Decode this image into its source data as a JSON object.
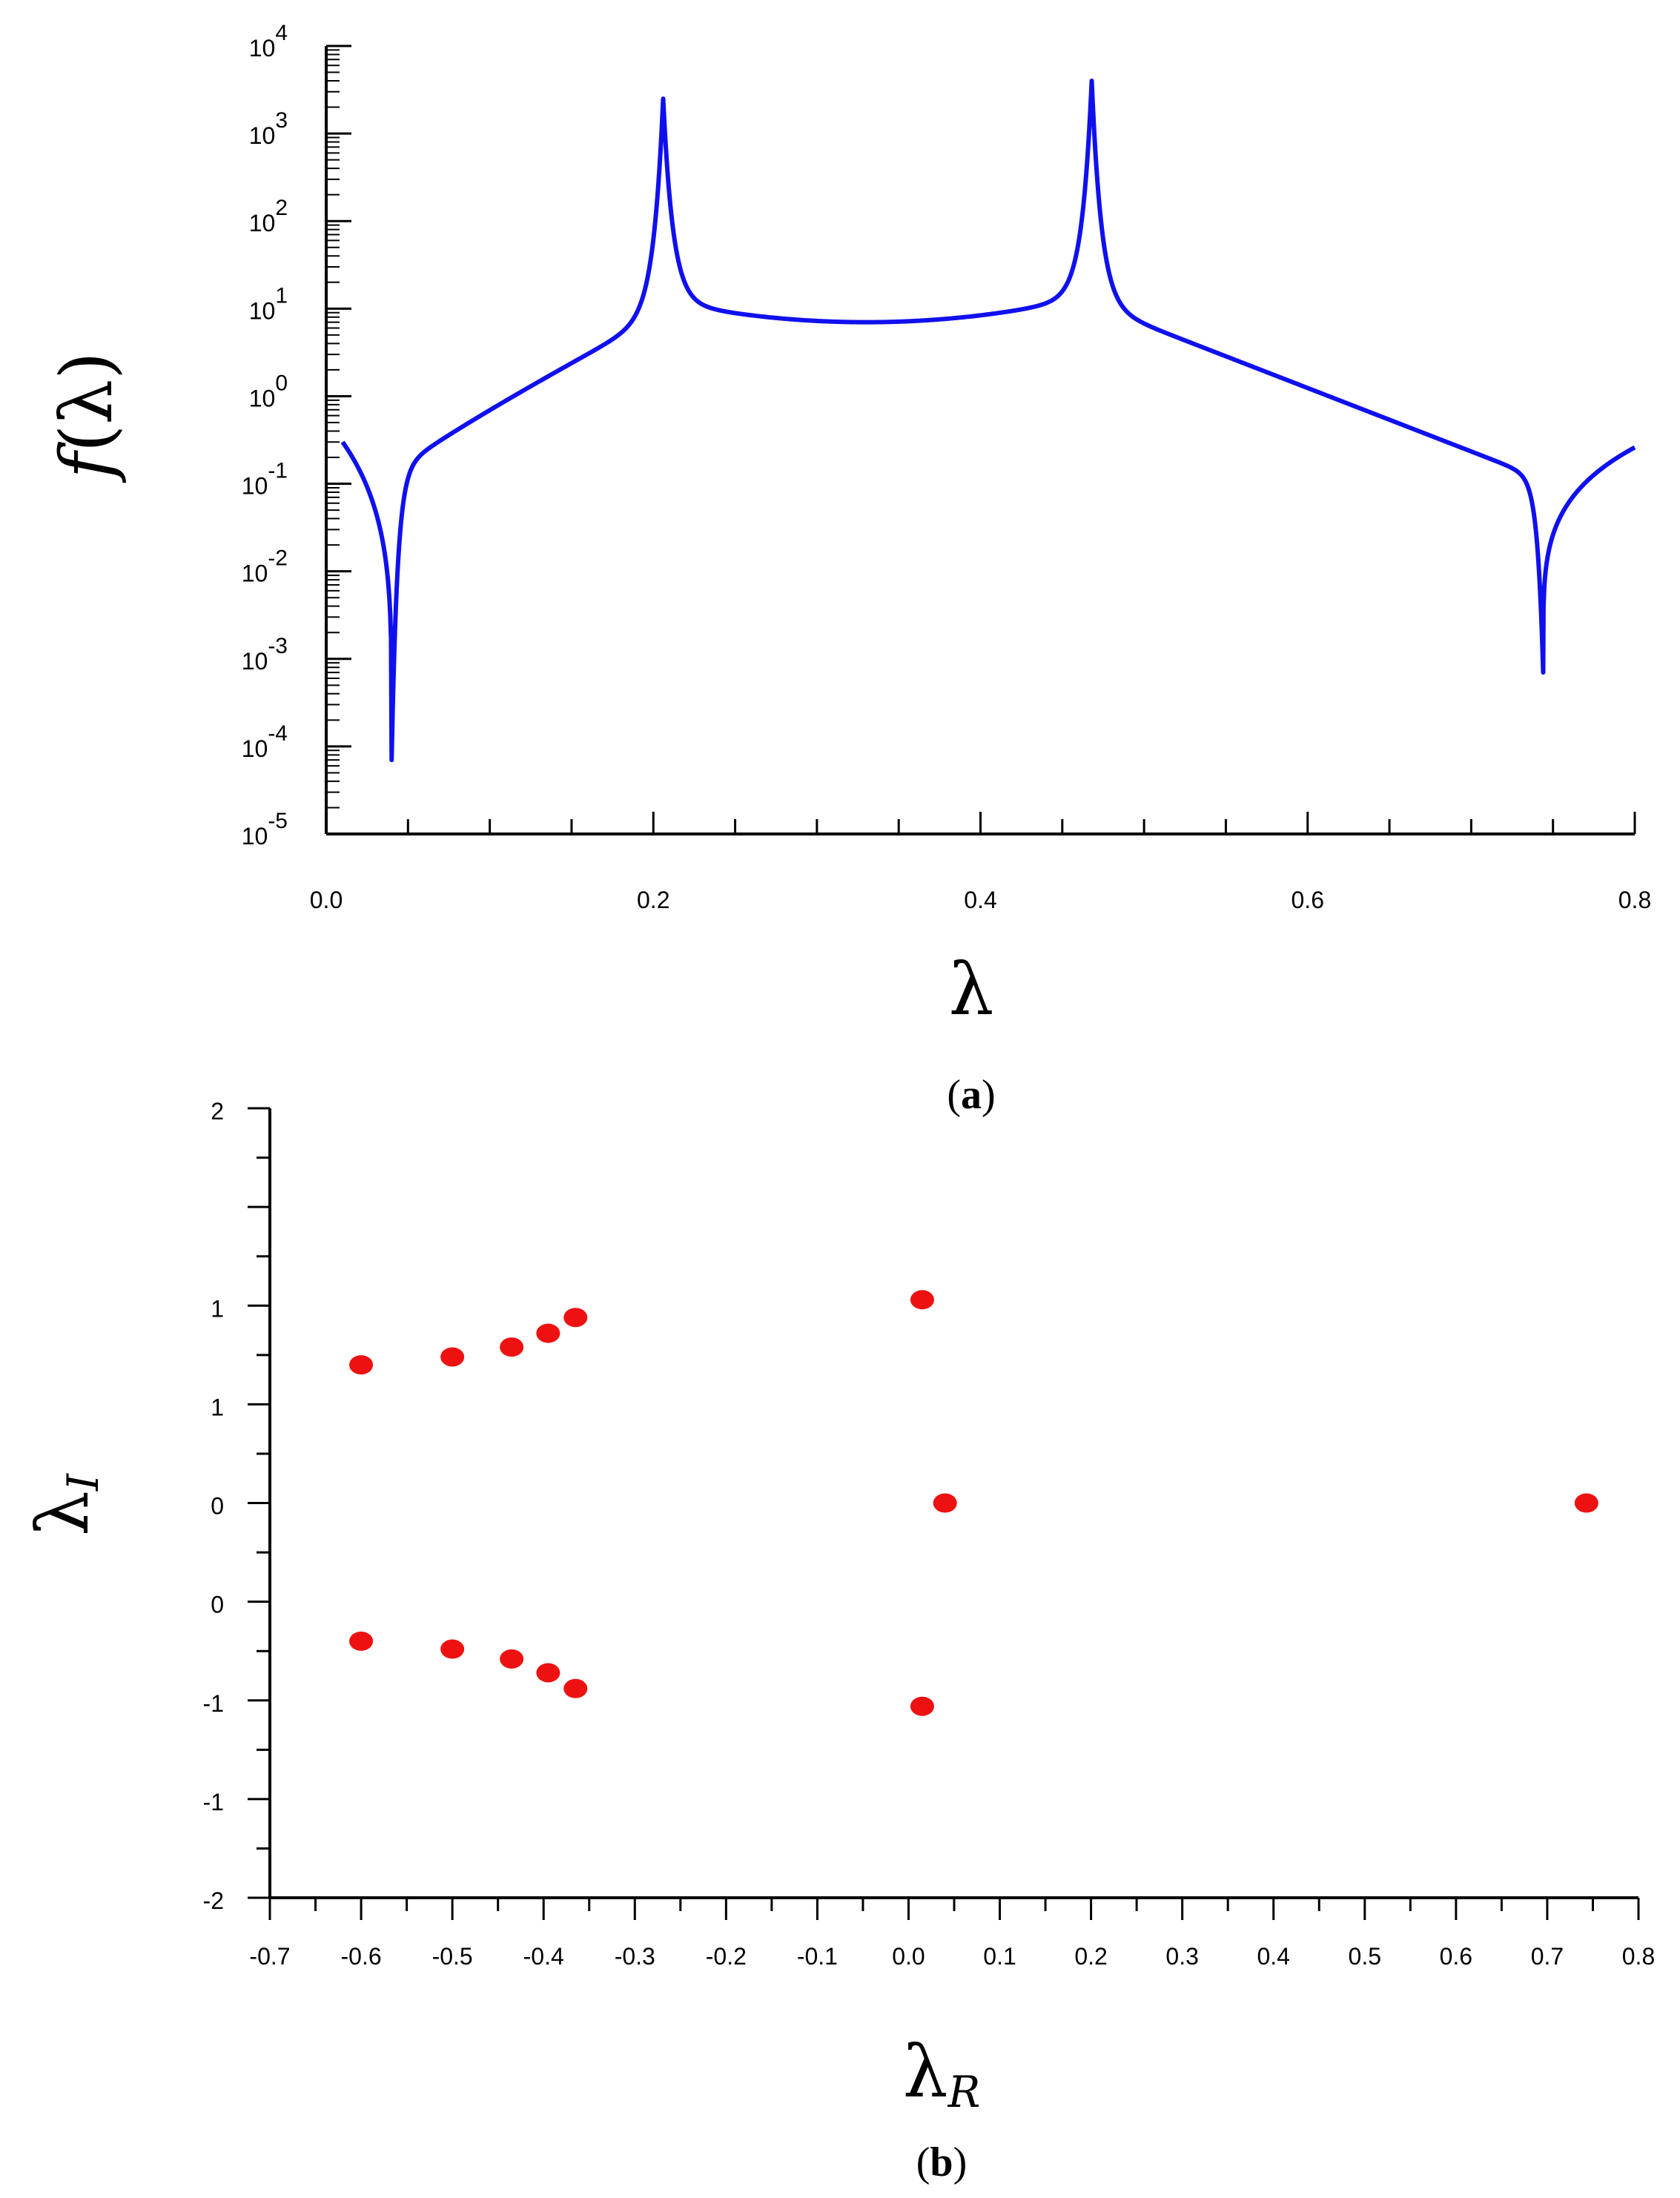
{
  "chart_data": [
    {
      "type": "line",
      "panel_label": "a",
      "xlabel": "λ",
      "ylabel_func": "f",
      "ylabel_arg": "λ",
      "y_scale": "log",
      "xlim": [
        0,
        0.8
      ],
      "ylim": [
        1e-05,
        10000.0
      ],
      "x_ticks": [
        "0.0",
        "0.2",
        "0.4",
        "0.6",
        "0.8"
      ],
      "y_ticks": [
        {
          "base": "10",
          "exp": "-5"
        },
        {
          "base": "10",
          "exp": "-4"
        },
        {
          "base": "10",
          "exp": "-3"
        },
        {
          "base": "10",
          "exp": "-2"
        },
        {
          "base": "10",
          "exp": "-1"
        },
        {
          "base": "10",
          "exp": "0"
        },
        {
          "base": "10",
          "exp": "1"
        },
        {
          "base": "10",
          "exp": "2"
        },
        {
          "base": "10",
          "exp": "3"
        },
        {
          "base": "10",
          "exp": "4"
        }
      ],
      "line_color": "#1010ee",
      "features": {
        "start": [
          0.01,
          0.3
        ],
        "dips": [
          [
            0.04,
            7e-05
          ],
          [
            0.744,
            0.0007
          ]
        ],
        "peaks": [
          [
            0.206,
            2500
          ],
          [
            0.468,
            4000
          ]
        ],
        "plateau_min": [
          0.33,
          7
        ],
        "end": [
          0.8,
          0.26
        ]
      }
    },
    {
      "type": "scatter",
      "panel_label": "b",
      "xlabel_main": "λ",
      "xlabel_sub": "R",
      "ylabel_main": "λ",
      "ylabel_sub": "I",
      "xlim": [
        -0.7,
        0.8
      ],
      "ylim": [
        -2,
        2
      ],
      "x_ticks": [
        "-0.7",
        "-0.6",
        "-0.5",
        "-0.4",
        "-0.3",
        "-0.2",
        "-0.1",
        "0.0",
        "0.1",
        "0.2",
        "0.3",
        "0.4",
        "0.5",
        "0.6",
        "0.7",
        "0.8"
      ],
      "y_ticks": [
        {
          "value": -2,
          "label": "-2"
        },
        {
          "value": -1.5,
          "label": "-1"
        },
        {
          "value": -1,
          "label": "-1"
        },
        {
          "value": -0.5,
          "label": "0"
        },
        {
          "value": 0,
          "label": "0"
        },
        {
          "value": 0.5,
          "label": "1"
        },
        {
          "value": 1,
          "label": "1"
        },
        {
          "value": 2,
          "label": "2"
        }
      ],
      "point_color": "#ee1111",
      "points": [
        {
          "x": -0.6,
          "y": 0.7
        },
        {
          "x": -0.5,
          "y": 0.74
        },
        {
          "x": -0.435,
          "y": 0.79
        },
        {
          "x": -0.395,
          "y": 0.86
        },
        {
          "x": -0.365,
          "y": 0.94
        },
        {
          "x": 0.015,
          "y": 1.03
        },
        {
          "x": 0.04,
          "y": 0.0
        },
        {
          "x": 0.743,
          "y": 0.0
        },
        {
          "x": -0.6,
          "y": -0.7
        },
        {
          "x": -0.5,
          "y": -0.74
        },
        {
          "x": -0.435,
          "y": -0.79
        },
        {
          "x": -0.395,
          "y": -0.86
        },
        {
          "x": -0.365,
          "y": -0.94
        },
        {
          "x": 0.015,
          "y": -1.03
        }
      ]
    }
  ]
}
